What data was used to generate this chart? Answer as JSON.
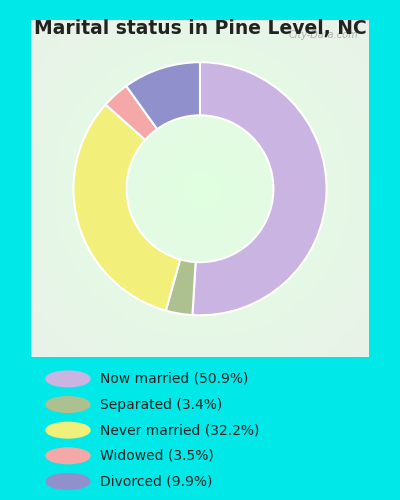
{
  "title": "Marital status in Pine Level, NC",
  "slices": [
    50.9,
    3.4,
    32.2,
    3.5,
    9.9
  ],
  "labels": [
    "Now married (50.9%)",
    "Separated (3.4%)",
    "Never married (32.2%)",
    "Widowed (3.5%)",
    "Divorced (9.9%)"
  ],
  "colors": [
    "#c9b4e2",
    "#adc090",
    "#f2f07a",
    "#f4a8a8",
    "#9090cc"
  ],
  "bg_color_outer": "#00e8e8",
  "watermark": "City-Data.com",
  "title_fontsize": 13.5,
  "legend_fontsize": 10,
  "donut_width": 0.42,
  "start_angle": 90,
  "title_color": "#222222"
}
